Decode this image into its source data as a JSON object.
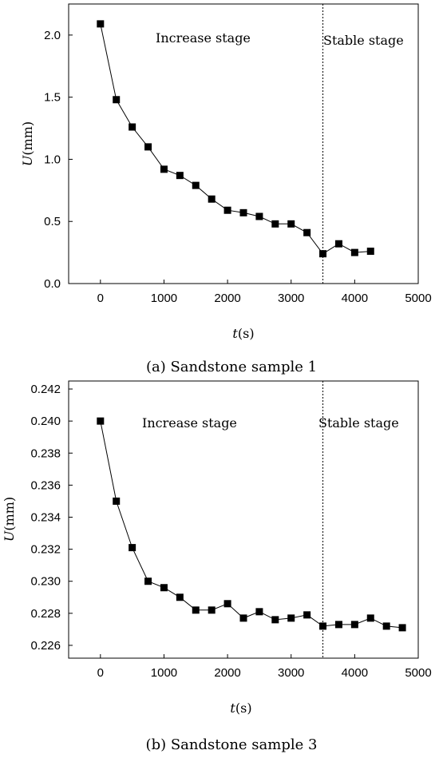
{
  "chart_data": [
    {
      "type": "line",
      "caption": "(a) Sandstone sample 1",
      "xlabel": "t(s)",
      "ylabel": "U(mm)",
      "xlim": [
        -500,
        5000
      ],
      "ylim": [
        0.0,
        2.25
      ],
      "xticks": [
        0,
        1000,
        2000,
        3000,
        4000,
        5000
      ],
      "yticks": [
        0.0,
        0.5,
        1.0,
        1.5,
        2.0
      ],
      "ytick_decimals": 1,
      "divider_x": 3500,
      "stage_labels": {
        "increase": "Increase stage",
        "stable": "Stable stage"
      },
      "marker": "square",
      "series": [
        {
          "x": [
            0,
            250,
            500,
            750,
            1000,
            1250,
            1500,
            1750,
            2000,
            2250,
            2500,
            2750,
            3000,
            3250,
            3500,
            3750,
            4000,
            4250
          ],
          "y": [
            2.09,
            1.48,
            1.26,
            1.1,
            0.92,
            0.87,
            0.79,
            0.68,
            0.59,
            0.57,
            0.54,
            0.48,
            0.48,
            0.41,
            0.24,
            0.32,
            0.25,
            0.26
          ]
        }
      ]
    },
    {
      "type": "line",
      "caption": "(b) Sandstone sample 3",
      "xlabel": "t(s)",
      "ylabel": "U(mm)",
      "xlim": [
        -500,
        5000
      ],
      "ylim": [
        0.2252,
        0.2425
      ],
      "xticks": [
        0,
        1000,
        2000,
        3000,
        4000,
        5000
      ],
      "yticks": [
        0.226,
        0.228,
        0.23,
        0.232,
        0.234,
        0.236,
        0.238,
        0.24,
        0.242
      ],
      "ytick_decimals": 3,
      "divider_x": 3500,
      "stage_labels": {
        "increase": "Increase stage",
        "stable": "Stable stage"
      },
      "marker": "square",
      "series": [
        {
          "x": [
            0,
            250,
            500,
            750,
            1000,
            1250,
            1500,
            1750,
            2000,
            2250,
            2500,
            2750,
            3000,
            3250,
            3500,
            3750,
            4000,
            4250,
            4500,
            4750
          ],
          "y": [
            0.24,
            0.235,
            0.2321,
            0.23,
            0.2296,
            0.229,
            0.2282,
            0.2282,
            0.2286,
            0.2277,
            0.2281,
            0.2276,
            0.2277,
            0.2279,
            0.2272,
            0.2273,
            0.2273,
            0.2277,
            0.2272,
            0.2271
          ]
        }
      ]
    }
  ]
}
